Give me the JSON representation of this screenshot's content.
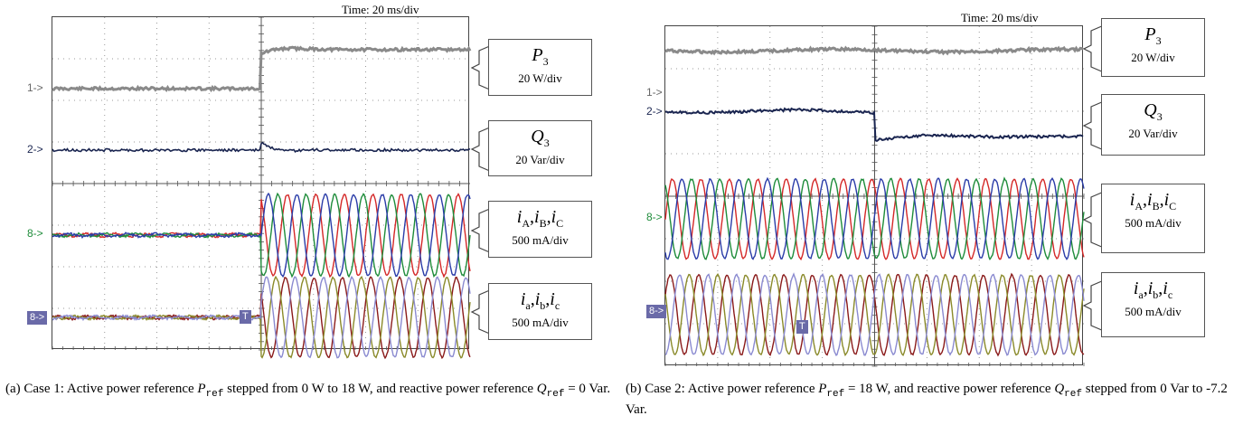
{
  "figure": {
    "panels": [
      {
        "time_scale": "Time: 20 ms/div",
        "channel_markers": [
          "1->",
          "2->",
          "8->",
          "8->"
        ],
        "trigger_marker": "T",
        "legends": [
          {
            "symbol": "P",
            "sub": "3",
            "unit": "20 W/div"
          },
          {
            "symbol": "Q",
            "sub": "3",
            "unit": "20 Var/div"
          },
          {
            "symbol": "iA,iB,iC",
            "unit": "500 mA/div"
          },
          {
            "symbol": "ia,ib,ic",
            "unit": "500 mA/div"
          }
        ],
        "caption_prefix": "(a) Case 1: Active power reference ",
        "caption_p": "P",
        "caption_p_sub": "ref",
        "caption_mid": " stepped from 0 W to 18 W, and reactive power reference ",
        "caption_q": "Q",
        "caption_q_sub": "ref",
        "caption_end": " = 0 Var."
      },
      {
        "time_scale": "Time: 20 ms/div",
        "channel_markers": [
          "1->",
          "2->",
          "8->",
          "8->"
        ],
        "trigger_marker": "T",
        "legends": [
          {
            "symbol": "P",
            "sub": "3",
            "unit": "20 W/div"
          },
          {
            "symbol": "Q",
            "sub": "3",
            "unit": "20 Var/div"
          },
          {
            "symbol": "iA,iB,iC",
            "unit": "500 mA/div"
          },
          {
            "symbol": "ia,ib,ic",
            "unit": "500 mA/div"
          }
        ],
        "caption_prefix": "(b) Case 2: Active power reference ",
        "caption_p": "P",
        "caption_p_sub": "ref",
        "caption_mid": " = 18 W, and reactive power reference ",
        "caption_q": "Q",
        "caption_q_sub": "ref",
        "caption_end": " stepped from 0 Var to -7.2 Var."
      }
    ],
    "colors": {
      "p_trace": "#8a8a8a",
      "q_trace": "#1a2550",
      "phase_a_upper": "#d42828",
      "phase_b_upper": "#1e8c3a",
      "phase_c_upper": "#2a3ca8",
      "phase_a_lower": "#8a1a1a",
      "phase_b_lower": "#8a8a2a",
      "phase_c_lower": "#8a8ad0"
    }
  }
}
